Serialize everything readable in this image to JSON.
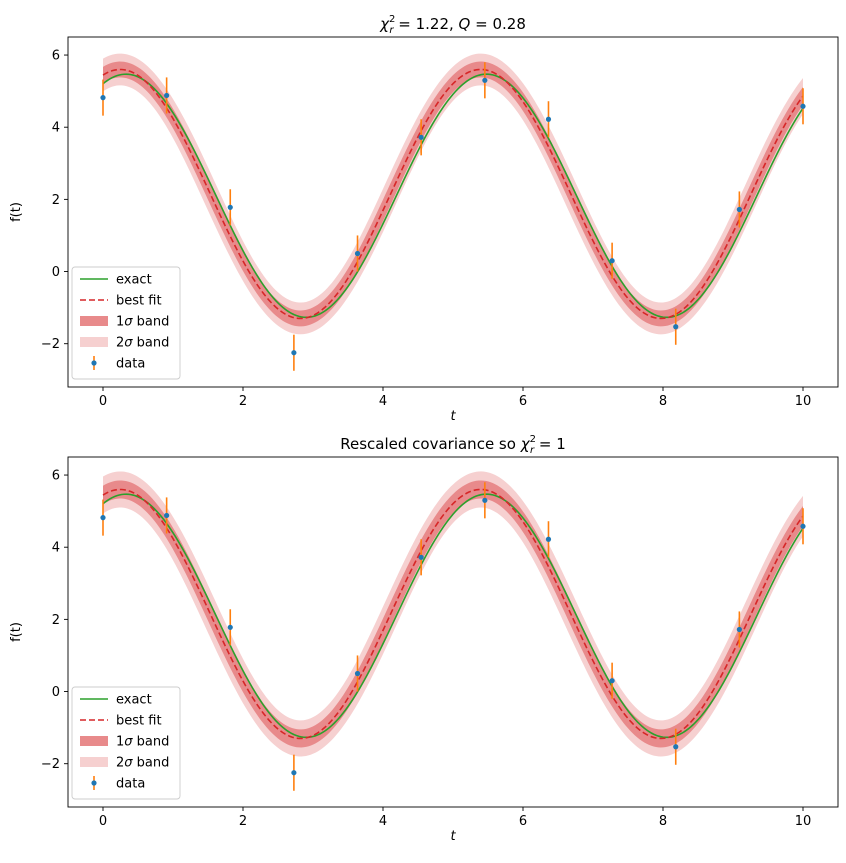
{
  "chart_data": [
    {
      "type": "line",
      "title": "χ²_r = 1.22, Q = 0.28",
      "title_parts": {
        "chi_label": "χ",
        "chi_sup": "2",
        "chi_sub": "r",
        "chi_value": " = 1.22, ",
        "q_label": "Q",
        "q_value": " = 0.28"
      },
      "xlabel": "t",
      "ylabel": "f(t)",
      "xlim": [
        -0.5,
        10.5
      ],
      "ylim": [
        -3.2,
        6.5
      ],
      "xticks": [
        "0",
        "2",
        "4",
        "6",
        "8",
        "10"
      ],
      "yticks": [
        "−2",
        "0",
        "2",
        "4",
        "6"
      ],
      "grid": false,
      "legend_position": "lower left",
      "legend": [
        {
          "key": "exact",
          "label": "exact",
          "color": "#2ca02c"
        },
        {
          "key": "fit",
          "label": "best fit",
          "color": "#d62728"
        },
        {
          "key": "band1",
          "label_sym": "σ",
          "label_pre": "1",
          "label_post": " band",
          "color": "#e88a8b"
        },
        {
          "key": "band2",
          "label_sym": "σ",
          "label_pre": "2",
          "label_post": " band",
          "color": "#f6d0d0"
        },
        {
          "key": "data",
          "label": "data",
          "color": "#1f77b4"
        }
      ],
      "model": {
        "exact": {
          "offset": 2.1,
          "amplitude": 3.37,
          "omega": 1.22,
          "phase": 0.4
        },
        "best_fit": {
          "offset": 2.15,
          "amplitude": 3.45,
          "omega": 1.22,
          "phase": 0.3
        },
        "sigma_band_halfwidth_min": 0.22,
        "sigma_band_halfwidth_max": 0.3
      },
      "series": [
        {
          "name": "data",
          "x": [
            0,
            0.909,
            1.818,
            2.727,
            3.636,
            4.545,
            5.455,
            6.364,
            7.273,
            8.182,
            9.091,
            10
          ],
          "y": [
            4.82,
            4.88,
            1.78,
            -2.25,
            0.5,
            3.72,
            5.3,
            4.22,
            0.3,
            -1.53,
            1.72,
            4.58
          ],
          "yerr": 0.5
        }
      ],
      "colors": {
        "exact": "#2ca02c",
        "fit": "#d62728",
        "band1": "#e88a8b",
        "band2": "#f6d0d0",
        "points": "#1f77b4",
        "errorbars": "#ff7f0e"
      }
    },
    {
      "type": "line",
      "title": "Rescaled covariance so χ²_r = 1",
      "title_parts": {
        "prefix": "Rescaled covariance so ",
        "chi_label": "χ",
        "chi_sup": "2",
        "chi_sub": "r",
        "chi_value": " = 1"
      },
      "xlabel": "t",
      "ylabel": "f(t)",
      "xlim": [
        -0.5,
        10.5
      ],
      "ylim": [
        -3.2,
        6.5
      ],
      "xticks": [
        "0",
        "2",
        "4",
        "6",
        "8",
        "10"
      ],
      "yticks": [
        "−2",
        "0",
        "2",
        "4",
        "6"
      ],
      "grid": false,
      "legend_position": "lower left",
      "legend": [
        {
          "key": "exact",
          "label": "exact",
          "color": "#2ca02c"
        },
        {
          "key": "fit",
          "label": "best fit",
          "color": "#d62728"
        },
        {
          "key": "band1",
          "label_sym": "σ",
          "label_pre": "1",
          "label_post": " band",
          "color": "#e88a8b"
        },
        {
          "key": "band2",
          "label_sym": "σ",
          "label_pre": "2",
          "label_post": " band",
          "color": "#f6d0d0"
        },
        {
          "key": "data",
          "label": "data",
          "color": "#1f77b4"
        }
      ],
      "model": {
        "exact": {
          "offset": 2.1,
          "amplitude": 3.37,
          "omega": 1.22,
          "phase": 0.4
        },
        "best_fit": {
          "offset": 2.15,
          "amplitude": 3.45,
          "omega": 1.22,
          "phase": 0.3
        },
        "sigma_band_halfwidth_min": 0.25,
        "sigma_band_halfwidth_max": 0.33
      },
      "series": [
        {
          "name": "data",
          "x": [
            0,
            0.909,
            1.818,
            2.727,
            3.636,
            4.545,
            5.455,
            6.364,
            7.273,
            8.182,
            9.091,
            10
          ],
          "y": [
            4.82,
            4.88,
            1.78,
            -2.25,
            0.5,
            3.72,
            5.3,
            4.22,
            0.3,
            -1.53,
            1.72,
            4.58
          ],
          "yerr": 0.5
        }
      ],
      "colors": {
        "exact": "#2ca02c",
        "fit": "#d62728",
        "band1": "#e88a8b",
        "band2": "#f6d0d0",
        "points": "#1f77b4",
        "errorbars": "#ff7f0e"
      }
    }
  ]
}
